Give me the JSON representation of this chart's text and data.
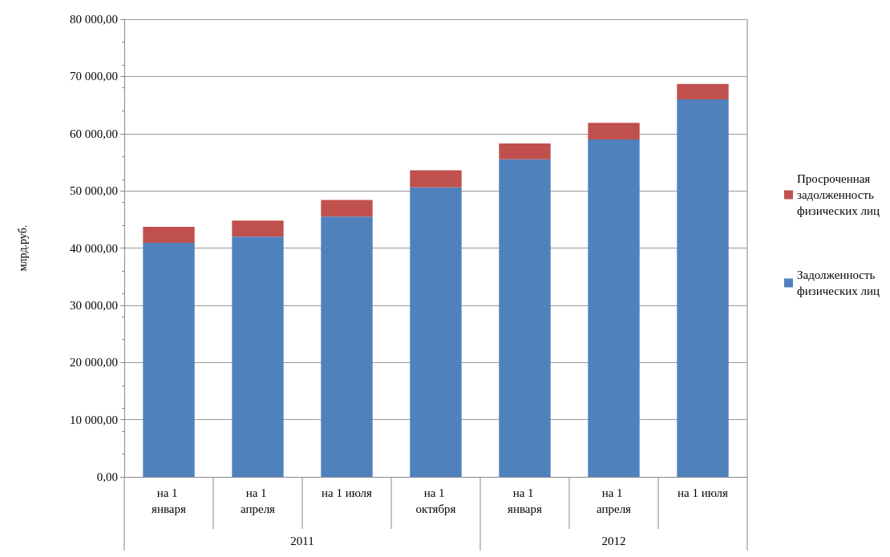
{
  "chart_data": {
    "type": "bar",
    "stacked": true,
    "ylabel": "млрд.руб.",
    "categories": [
      "на 1 января",
      "на 1 апреля",
      "на 1 июля",
      "на 1 октября",
      "на 1 января",
      "на 1 апреля",
      "на 1 июля"
    ],
    "series": [
      {
        "name": "Задолженность физических лиц",
        "color": "#4f81bd",
        "values": [
          40900,
          42000,
          45500,
          50600,
          55500,
          59000,
          66000
        ]
      },
      {
        "name": "Просроченная задолженность физических лиц",
        "color": "#c0504d",
        "values": [
          2800,
          2800,
          2900,
          3000,
          2800,
          2900,
          2700
        ]
      }
    ],
    "ylim": [
      0,
      80000
    ],
    "yticks": [
      {
        "value": 0,
        "label": "0,00"
      },
      {
        "value": 10000,
        "label": "10 000,00"
      },
      {
        "value": 20000,
        "label": "20 000,00"
      },
      {
        "value": 30000,
        "label": "30 000,00"
      },
      {
        "value": 40000,
        "label": "40 000,00"
      },
      {
        "value": 50000,
        "label": "50 000,00"
      },
      {
        "value": 60000,
        "label": "60 000,00"
      },
      {
        "value": 70000,
        "label": "70 000,00"
      },
      {
        "value": 80000,
        "label": "80 000,00"
      }
    ],
    "grid": "y",
    "legend": "right",
    "annotations": [
      "2011",
      "2012"
    ]
  }
}
